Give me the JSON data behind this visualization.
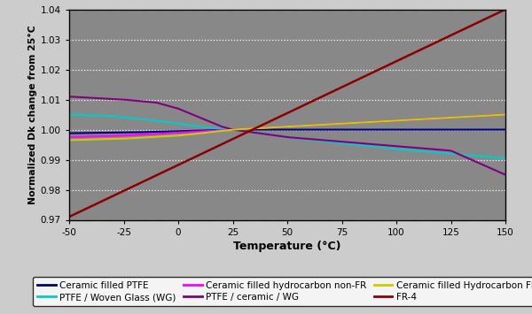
{
  "xlabel": "Temperature (°C)",
  "ylabel": "Normalized Dk change from 25°C",
  "xlim": [
    -50,
    150
  ],
  "ylim": [
    0.97,
    1.04
  ],
  "xticks": [
    -50,
    -25,
    0,
    25,
    50,
    75,
    100,
    125,
    150
  ],
  "yticks": [
    0.97,
    0.98,
    0.99,
    1.0,
    1.01,
    1.02,
    1.03,
    1.04
  ],
  "plot_bg_color": "#888888",
  "fig_bg_color": "#cccccc",
  "lines": [
    {
      "label": "Ceramic filled PTFE",
      "color": "#000080",
      "lw": 1.5,
      "points_x": [
        -50,
        -40,
        -30,
        -20,
        -10,
        0,
        10,
        20,
        25,
        30,
        50,
        75,
        100,
        125,
        150
      ],
      "points_y": [
        0.9988,
        0.9989,
        0.999,
        0.9991,
        0.9993,
        0.9995,
        0.9997,
        0.9999,
        1.0,
        1.0,
        1.0,
        1.0,
        1.0,
        1.0,
        1.0
      ]
    },
    {
      "label": "PTFE / Woven Glass (WG)",
      "color": "#00CCCC",
      "lw": 1.5,
      "points_x": [
        -50,
        -30,
        -10,
        0,
        10,
        20,
        25,
        50,
        75,
        100,
        125,
        150
      ],
      "points_y": [
        1.005,
        1.0045,
        1.003,
        1.002,
        1.001,
        1.0002,
        1.0,
        0.9975,
        0.9955,
        0.9935,
        0.992,
        0.9905
      ]
    },
    {
      "label": "Ceramic filled hydrocarbon non-FR",
      "color": "#FF00FF",
      "lw": 1.5,
      "points_x": [
        -50,
        -25,
        0,
        25,
        50,
        75,
        100,
        125,
        150
      ],
      "points_y": [
        0.9975,
        0.998,
        0.999,
        1.0,
        1.001,
        1.002,
        1.003,
        1.004,
        1.005
      ]
    },
    {
      "label": "PTFE / ceramic / WG",
      "color": "#800080",
      "lw": 1.5,
      "points_x": [
        -50,
        -25,
        -10,
        0,
        10,
        20,
        25,
        50,
        75,
        100,
        125,
        150
      ],
      "points_y": [
        1.011,
        1.01,
        1.009,
        1.007,
        1.004,
        1.001,
        1.0,
        0.9975,
        0.996,
        0.9945,
        0.993,
        0.985
      ]
    },
    {
      "label": "Ceramic filled Hydrocarbon FR",
      "color": "#CCCC00",
      "lw": 1.5,
      "points_x": [
        -50,
        -25,
        0,
        25,
        50,
        75,
        100,
        125,
        150
      ],
      "points_y": [
        0.9965,
        0.997,
        0.998,
        1.0,
        1.001,
        1.002,
        1.003,
        1.004,
        1.005
      ]
    },
    {
      "label": "FR-4",
      "color": "#8B0000",
      "lw": 1.8,
      "points_x": [
        -50,
        150
      ],
      "points_y": [
        0.971,
        1.04
      ]
    }
  ],
  "legend_ncol": 3,
  "legend_fontsize": 7.5
}
